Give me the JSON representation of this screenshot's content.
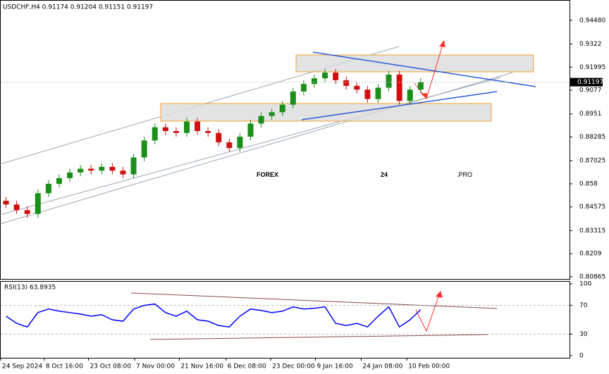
{
  "chart_data": [
    {
      "type": "candlestick",
      "title": "USDCHF,H4  0.91174 0.91204 0.91151 0.91197",
      "watermark": [
        "FOREX",
        "24",
        ".PRO"
      ],
      "last_price": 0.91197,
      "up_color": "#1a8f1a",
      "down_color": "#d01010",
      "open": [
        0.849,
        0.847,
        0.844,
        0.842,
        0.853,
        0.858,
        0.861,
        0.864,
        0.866,
        0.865,
        0.867,
        0.865,
        0.863,
        0.872,
        0.881,
        0.888,
        0.886,
        0.885,
        0.891,
        0.886,
        0.885,
        0.88,
        0.877,
        0.883,
        0.89,
        0.894,
        0.896,
        0.9,
        0.907,
        0.911,
        0.914,
        0.917,
        0.913,
        0.91,
        0.908,
        0.903,
        0.909,
        0.916,
        0.902,
        0.908
      ],
      "high": [
        0.851,
        0.849,
        0.846,
        0.855,
        0.86,
        0.863,
        0.866,
        0.868,
        0.868,
        0.869,
        0.869,
        0.867,
        0.874,
        0.883,
        0.89,
        0.89,
        0.888,
        0.893,
        0.893,
        0.888,
        0.887,
        0.882,
        0.885,
        0.892,
        0.896,
        0.898,
        0.902,
        0.909,
        0.913,
        0.916,
        0.919,
        0.919,
        0.915,
        0.912,
        0.91,
        0.911,
        0.918,
        0.918,
        0.91,
        0.914
      ],
      "low": [
        0.845,
        0.842,
        0.84,
        0.84,
        0.851,
        0.856,
        0.859,
        0.862,
        0.863,
        0.863,
        0.863,
        0.861,
        0.861,
        0.87,
        0.879,
        0.884,
        0.883,
        0.883,
        0.884,
        0.883,
        0.878,
        0.875,
        0.875,
        0.881,
        0.888,
        0.892,
        0.894,
        0.898,
        0.905,
        0.909,
        0.912,
        0.911,
        0.908,
        0.906,
        0.901,
        0.901,
        0.907,
        0.9,
        0.9,
        0.906
      ],
      "close": [
        0.847,
        0.844,
        0.842,
        0.853,
        0.858,
        0.861,
        0.864,
        0.866,
        0.865,
        0.867,
        0.865,
        0.863,
        0.872,
        0.881,
        0.888,
        0.886,
        0.885,
        0.891,
        0.886,
        0.885,
        0.88,
        0.877,
        0.883,
        0.89,
        0.894,
        0.896,
        0.9,
        0.907,
        0.911,
        0.914,
        0.917,
        0.913,
        0.91,
        0.908,
        0.903,
        0.909,
        0.916,
        0.902,
        0.908,
        0.912
      ],
      "xlim": [
        -0.5,
        53
      ],
      "xticks": [
        {
          "value": -0.5,
          "label": "24 Sep 2024"
        },
        {
          "value": 3.6,
          "label": "8 Oct 16:00"
        },
        {
          "value": 7.75,
          "label": "23 Oct 08:00"
        },
        {
          "value": 12.1,
          "label": "7 Nov 00:00"
        },
        {
          "value": 16.3,
          "label": "21 Nov 16:00"
        },
        {
          "value": 20.7,
          "label": "6 Dec 08:00"
        },
        {
          "value": 24.9,
          "label": "23 Dec 00:00"
        },
        {
          "value": 29.1,
          "label": "9 Jan 16:00"
        },
        {
          "value": 33.4,
          "label": "24 Jan 08:00"
        },
        {
          "value": 37.7,
          "label": "10 Feb 00:00"
        }
      ],
      "ylim": [
        0.8075,
        0.9552
      ],
      "yticks": [
        {
          "value": 0.9448,
          "label": "0.94480"
        },
        0.9322,
        0.91995,
        0.9077,
        0.8951,
        0.88285,
        0.87025,
        0.858,
        0.84575,
        0.83315,
        0.8209,
        0.80865
      ]
    },
    {
      "type": "line",
      "title": "RSI(13) 63.8935",
      "color": "#0000ff",
      "values": [
        55,
        45,
        40,
        60,
        65,
        62,
        60,
        58,
        55,
        57,
        50,
        48,
        65,
        70,
        72,
        60,
        55,
        62,
        50,
        48,
        42,
        40,
        55,
        65,
        63,
        60,
        62,
        68,
        65,
        66,
        68,
        45,
        42,
        45,
        40,
        55,
        68,
        40,
        50,
        64
      ],
      "xlim": [
        -0.5,
        53
      ],
      "ylim": [
        -3,
        103
      ],
      "yticks": [
        100,
        70,
        30,
        0
      ],
      "levels": [
        70,
        30
      ]
    }
  ]
}
